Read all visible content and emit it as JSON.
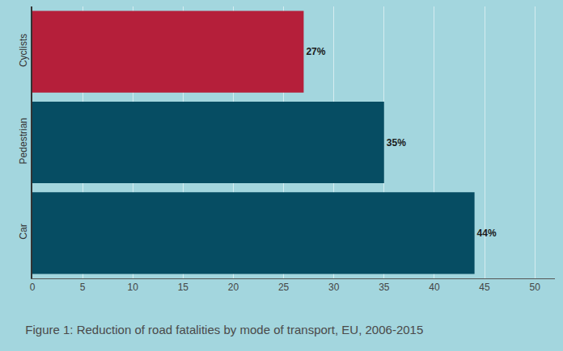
{
  "chart_data": {
    "type": "bar",
    "title": "Figure 1: Reduction of road fatalities by mode of transport, EU, 2006-2015",
    "orientation": "horizontal",
    "categories": [
      "Cyclists",
      "Pedestrian",
      "Car"
    ],
    "values": [
      27,
      35,
      44
    ],
    "value_labels": [
      "27%",
      "35%",
      "44%"
    ],
    "colors": [
      "#b51f3a",
      "#064d63",
      "#064d63"
    ],
    "xlim": [
      0,
      52
    ],
    "xticks": [
      0,
      5,
      10,
      15,
      20,
      25,
      30,
      35,
      40,
      45,
      50
    ],
    "grid": true,
    "data_labels": true
  }
}
